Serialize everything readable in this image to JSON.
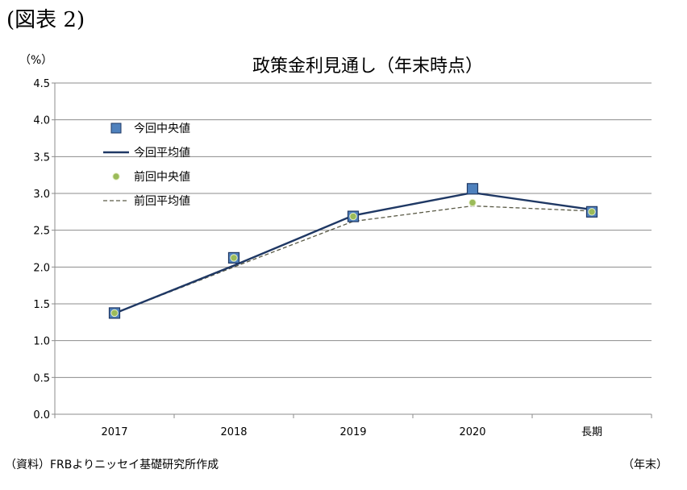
{
  "figure_label": "(図表 2)",
  "source_note": "（資料）FRBよりニッセイ基礎研究所作成",
  "chart_data": {
    "type": "line",
    "title": "政策金利見通し（年末時点）",
    "ylabel": "（%）",
    "xlabel": "（年末）",
    "categories": [
      "2017",
      "2018",
      "2019",
      "2020",
      "長期"
    ],
    "ylim": [
      0,
      4.5
    ],
    "yticks": [
      "0.0",
      "0.5",
      "1.0",
      "1.5",
      "2.0",
      "2.5",
      "3.0",
      "3.5",
      "4.0",
      "4.5"
    ],
    "grid": true,
    "legend_position": "top-left",
    "series": [
      {
        "name": "今回中央値",
        "kind": "marker-square",
        "color": "#4f81bd",
        "values": [
          1.375,
          2.125,
          2.6875,
          3.0625,
          2.75
        ]
      },
      {
        "name": "今回平均値",
        "kind": "solid-line",
        "color": "#1f3864",
        "values": [
          1.37,
          2.02,
          2.7,
          3.01,
          2.78
        ]
      },
      {
        "name": "前回中央値",
        "kind": "marker-circle",
        "color": "#9bbb59",
        "values": [
          1.375,
          2.125,
          2.6875,
          2.875,
          2.75
        ]
      },
      {
        "name": "前回平均値",
        "kind": "dashed-line",
        "color": "#5a5a46",
        "values": [
          1.37,
          2.0,
          2.62,
          2.83,
          2.76
        ]
      }
    ]
  }
}
